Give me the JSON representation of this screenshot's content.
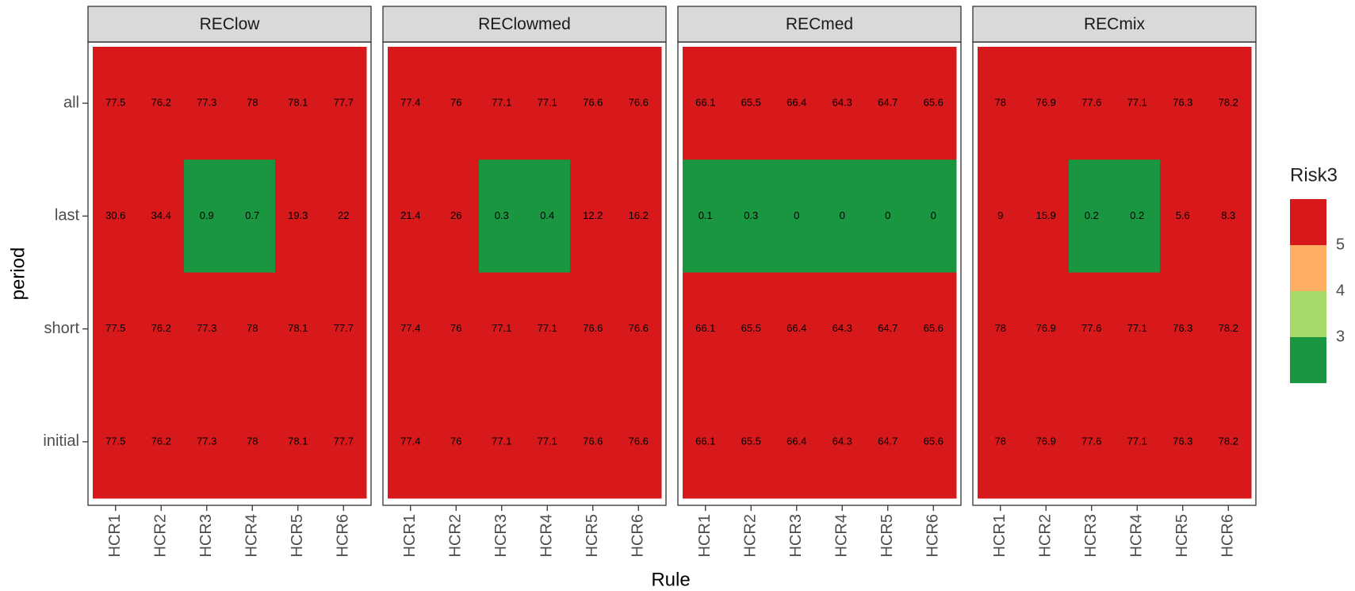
{
  "chart_data": {
    "type": "heatmap",
    "x_label": "Rule",
    "y_label": "period",
    "legend": {
      "title": "Risk3",
      "colors": [
        "#D7191C",
        "#FDAE61",
        "#A6D96A",
        "#1A9641"
      ],
      "breaks": [
        5,
        4,
        3
      ]
    },
    "facets": [
      {
        "title": "REClow",
        "x": [
          "HCR1",
          "HCR2",
          "HCR3",
          "HCR4",
          "HCR5",
          "HCR6"
        ],
        "y": [
          "all",
          "last",
          "short",
          "initial"
        ],
        "values": [
          [
            77.5,
            76.2,
            77.3,
            78,
            78.1,
            77.7
          ],
          [
            30.6,
            34.4,
            0.9,
            0.7,
            19.3,
            22
          ],
          [
            77.5,
            76.2,
            77.3,
            78,
            78.1,
            77.7
          ],
          [
            77.5,
            76.2,
            77.3,
            78,
            78.1,
            77.7
          ]
        ],
        "colors": [
          [
            "#D7191C",
            "#D7191C",
            "#D7191C",
            "#D7191C",
            "#D7191C",
            "#D7191C"
          ],
          [
            "#D7191C",
            "#D7191C",
            "#1A9641",
            "#1A9641",
            "#D7191C",
            "#D7191C"
          ],
          [
            "#D7191C",
            "#D7191C",
            "#D7191C",
            "#D7191C",
            "#D7191C",
            "#D7191C"
          ],
          [
            "#D7191C",
            "#D7191C",
            "#D7191C",
            "#D7191C",
            "#D7191C",
            "#D7191C"
          ]
        ]
      },
      {
        "title": "REClowmed",
        "x": [
          "HCR1",
          "HCR2",
          "HCR3",
          "HCR4",
          "HCR5",
          "HCR6"
        ],
        "y": [
          "all",
          "last",
          "short",
          "initial"
        ],
        "values": [
          [
            77.4,
            76,
            77.1,
            77.1,
            76.6,
            76.6
          ],
          [
            21.4,
            26,
            0.3,
            0.4,
            12.2,
            16.2
          ],
          [
            77.4,
            76,
            77.1,
            77.1,
            76.6,
            76.6
          ],
          [
            77.4,
            76,
            77.1,
            77.1,
            76.6,
            76.6
          ]
        ],
        "colors": [
          [
            "#D7191C",
            "#D7191C",
            "#D7191C",
            "#D7191C",
            "#D7191C",
            "#D7191C"
          ],
          [
            "#D7191C",
            "#D7191C",
            "#1A9641",
            "#1A9641",
            "#D7191C",
            "#D7191C"
          ],
          [
            "#D7191C",
            "#D7191C",
            "#D7191C",
            "#D7191C",
            "#D7191C",
            "#D7191C"
          ],
          [
            "#D7191C",
            "#D7191C",
            "#D7191C",
            "#D7191C",
            "#D7191C",
            "#D7191C"
          ]
        ]
      },
      {
        "title": "RECmed",
        "x": [
          "HCR1",
          "HCR2",
          "HCR3",
          "HCR4",
          "HCR5",
          "HCR6"
        ],
        "y": [
          "all",
          "last",
          "short",
          "initial"
        ],
        "values": [
          [
            66.1,
            65.5,
            66.4,
            64.3,
            64.7,
            65.6
          ],
          [
            0.1,
            0.3,
            0,
            0,
            0,
            0
          ],
          [
            66.1,
            65.5,
            66.4,
            64.3,
            64.7,
            65.6
          ],
          [
            66.1,
            65.5,
            66.4,
            64.3,
            64.7,
            65.6
          ]
        ],
        "colors": [
          [
            "#D7191C",
            "#D7191C",
            "#D7191C",
            "#D7191C",
            "#D7191C",
            "#D7191C"
          ],
          [
            "#1A9641",
            "#1A9641",
            "#1A9641",
            "#1A9641",
            "#1A9641",
            "#1A9641"
          ],
          [
            "#D7191C",
            "#D7191C",
            "#D7191C",
            "#D7191C",
            "#D7191C",
            "#D7191C"
          ],
          [
            "#D7191C",
            "#D7191C",
            "#D7191C",
            "#D7191C",
            "#D7191C",
            "#D7191C"
          ]
        ]
      },
      {
        "title": "RECmix",
        "x": [
          "HCR1",
          "HCR2",
          "HCR3",
          "HCR4",
          "HCR5",
          "HCR6"
        ],
        "y": [
          "all",
          "last",
          "short",
          "initial"
        ],
        "values": [
          [
            78,
            76.9,
            77.6,
            77.1,
            76.3,
            78.2
          ],
          [
            9,
            15.9,
            0.2,
            0.2,
            5.6,
            8.3
          ],
          [
            78,
            76.9,
            77.6,
            77.1,
            76.3,
            78.2
          ],
          [
            78,
            76.9,
            77.6,
            77.1,
            76.3,
            78.2
          ]
        ],
        "colors": [
          [
            "#D7191C",
            "#D7191C",
            "#D7191C",
            "#D7191C",
            "#D7191C",
            "#D7191C"
          ],
          [
            "#D7191C",
            "#D7191C",
            "#1A9641",
            "#1A9641",
            "#D7191C",
            "#D7191C"
          ],
          [
            "#D7191C",
            "#D7191C",
            "#D7191C",
            "#D7191C",
            "#D7191C",
            "#D7191C"
          ],
          [
            "#D7191C",
            "#D7191C",
            "#D7191C",
            "#D7191C",
            "#D7191C",
            "#D7191C"
          ]
        ]
      }
    ]
  }
}
